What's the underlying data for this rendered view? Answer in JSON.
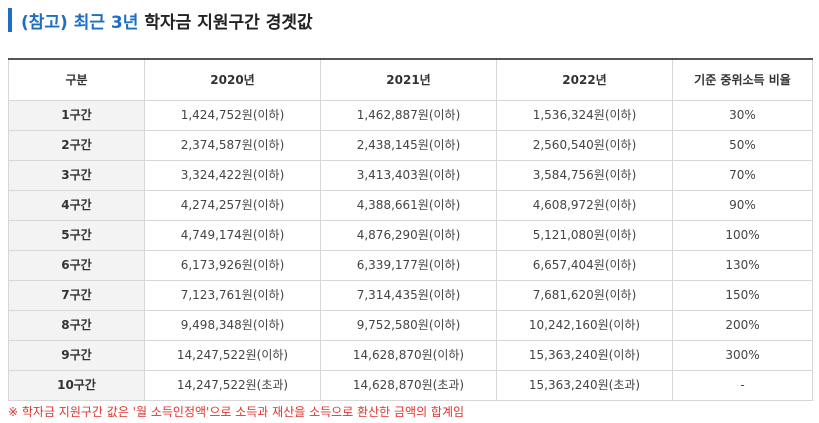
{
  "title": {
    "prefix": "(참고) 최근 3년",
    "main": "학자금 지원구간 경곗값"
  },
  "colors": {
    "accent": "#1e6fc4",
    "footnote": "#e0332d",
    "label_bg": "#f3f3f3"
  },
  "table": {
    "headers": [
      "구분",
      "2020년",
      "2021년",
      "2022년",
      "기준 중위소득 비율"
    ],
    "rows": [
      {
        "label": "1구간",
        "y2020": "1,424,752원(이하)",
        "y2021": "1,462,887원(이하)",
        "y2022": "1,536,324원(이하)",
        "ratio": "30%"
      },
      {
        "label": "2구간",
        "y2020": "2,374,587원(이하)",
        "y2021": "2,438,145원(이하)",
        "y2022": "2,560,540원(이하)",
        "ratio": "50%"
      },
      {
        "label": "3구간",
        "y2020": "3,324,422원(이하)",
        "y2021": "3,413,403원(이하)",
        "y2022": "3,584,756원(이하)",
        "ratio": "70%"
      },
      {
        "label": "4구간",
        "y2020": "4,274,257원(이하)",
        "y2021": "4,388,661원(이하)",
        "y2022": "4,608,972원(이하)",
        "ratio": "90%"
      },
      {
        "label": "5구간",
        "y2020": "4,749,174원(이하)",
        "y2021": "4,876,290원(이하)",
        "y2022": "5,121,080원(이하)",
        "ratio": "100%"
      },
      {
        "label": "6구간",
        "y2020": "6,173,926원(이하)",
        "y2021": "6,339,177원(이하)",
        "y2022": "6,657,404원(이하)",
        "ratio": "130%"
      },
      {
        "label": "7구간",
        "y2020": "7,123,761원(이하)",
        "y2021": "7,314,435원(이하)",
        "y2022": "7,681,620원(이하)",
        "ratio": "150%"
      },
      {
        "label": "8구간",
        "y2020": "9,498,348원(이하)",
        "y2021": "9,752,580원(이하)",
        "y2022": "10,242,160원(이하)",
        "ratio": "200%"
      },
      {
        "label": "9구간",
        "y2020": "14,247,522원(이하)",
        "y2021": "14,628,870원(이하)",
        "y2022": "15,363,240원(이하)",
        "ratio": "300%"
      },
      {
        "label": "10구간",
        "y2020": "14,247,522원(초과)",
        "y2021": "14,628,870원(초과)",
        "y2022": "15,363,240원(초과)",
        "ratio": "-"
      }
    ]
  },
  "footnote": "※ 학자금 지원구간 값은 '월 소득인정액'으로 소득과 재산을 소득으로 환산한 금액의 합계임"
}
